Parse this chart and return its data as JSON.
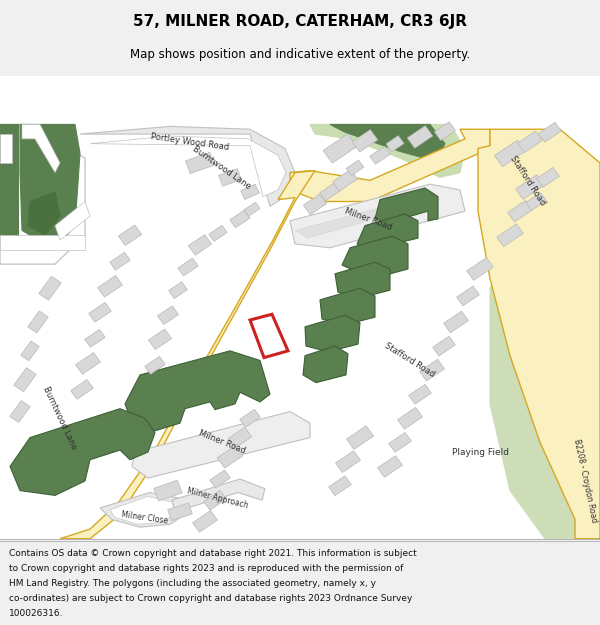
{
  "title": "57, MILNER ROAD, CATERHAM, CR3 6JR",
  "subtitle": "Map shows position and indicative extent of the property.",
  "footer": "Contains OS data © Crown copyright and database right 2021. This information is subject to Crown copyright and database rights 2023 and is reproduced with the permission of HM Land Registry. The polygons (including the associated geometry, namely x, y co-ordinates) are subject to Crown copyright and database rights 2023 Ordnance Survey 100026316.",
  "bg_color": "#f0f0f0",
  "map_bg": "#ffffff",
  "road_yellow_fill": "#faf0c0",
  "road_yellow_edge": "#d4a820",
  "green_dark": "#5a8050",
  "green_light": "#c8ddb0",
  "green_playing": "#ccddb8",
  "building_fill": "#d8d8d8",
  "building_edge": "#b8b8b8",
  "road_fill": "#f0f0f0",
  "road_edge": "#c0c0c0",
  "red_color": "#cc2222",
  "salmon_fill": "#e8b8a8",
  "white_road_fill": "#f8f8f8",
  "white_road_edge": "#c8c8c8"
}
